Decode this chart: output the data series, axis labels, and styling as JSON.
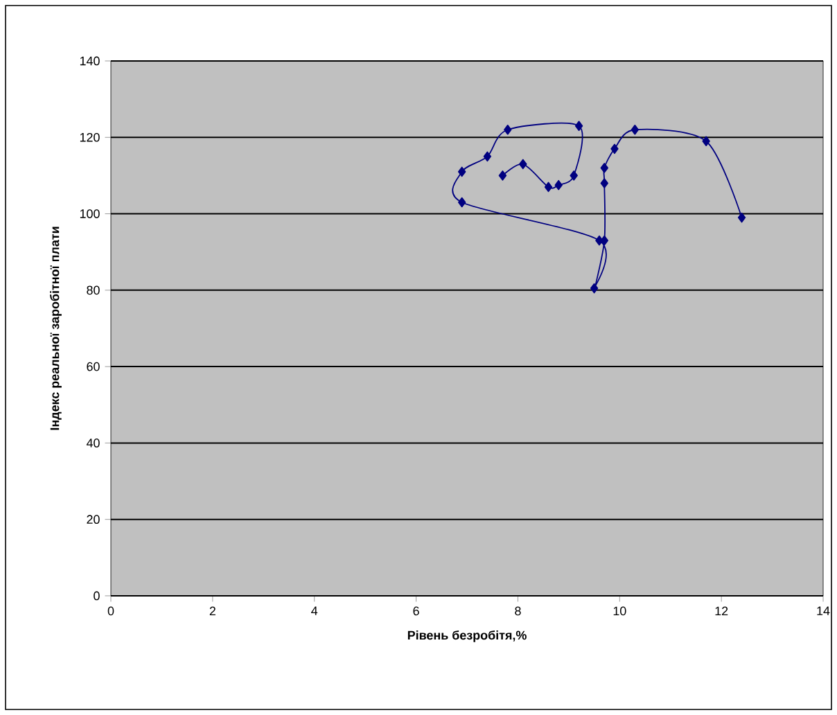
{
  "chart_data": {
    "type": "line",
    "xlabel": "Рівень безробітя,%",
    "ylabel": "Індекс реальної заробітної плати",
    "xlim": [
      0,
      14
    ],
    "xticks": [
      0,
      2,
      4,
      6,
      8,
      10,
      12,
      14
    ],
    "ylim": [
      0,
      140
    ],
    "yticks": [
      0,
      20,
      40,
      60,
      80,
      100,
      120,
      140
    ],
    "grid": "y",
    "marker": "diamond",
    "line_style": "solid",
    "series": [
      {
        "color": "#000080",
        "x": [
          12.4,
          11.7,
          10.3,
          9.9,
          9.7,
          9.7,
          9.7,
          9.5,
          9.6,
          6.9,
          6.9,
          7.4,
          7.8,
          9.2,
          9.1,
          8.8,
          8.6,
          8.1,
          7.7
        ],
        "values": [
          99,
          119,
          122,
          117,
          112,
          108,
          93,
          80.5,
          93,
          103,
          111,
          115,
          122,
          123,
          110,
          107.5,
          107,
          113,
          110
        ]
      }
    ]
  }
}
